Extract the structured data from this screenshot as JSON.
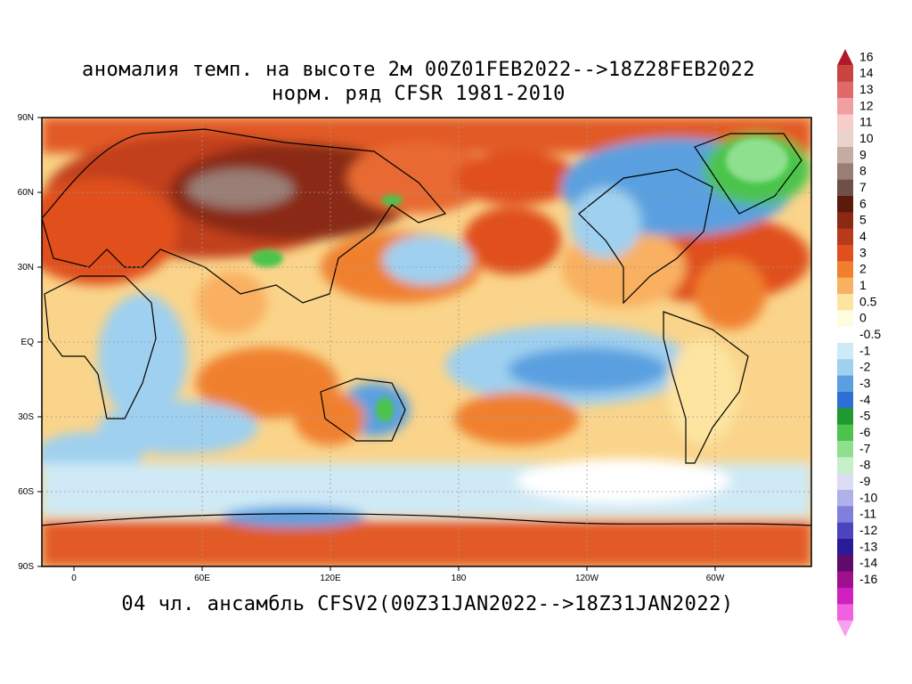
{
  "title": {
    "line1": "аномалия темп. на высоте 2м 00Z01FEB2022-->18Z28FEB2022",
    "line2": "норм. ряд CFSR 1981-2010"
  },
  "footer": "04 чл. ансамбль CFSV2(00Z31JAN2022-->18Z31JAN2022)",
  "lat_labels": [
    "90N",
    "60N",
    "30N",
    "EQ",
    "30S",
    "60S",
    "90S"
  ],
  "lon_labels": [
    "0",
    "60E",
    "120E",
    "180",
    "120W",
    "60W"
  ],
  "colorbar": {
    "labels": [
      "16",
      "14",
      "13",
      "12",
      "11",
      "10",
      "9",
      "8",
      "7",
      "6",
      "5",
      "4",
      "3",
      "2",
      "1",
      "0.5",
      "0",
      "-0.5",
      "-1",
      "-2",
      "-3",
      "-4",
      "-5",
      "-6",
      "-7",
      "-8",
      "-9",
      "-10",
      "-11",
      "-12",
      "-13",
      "-14",
      "-16"
    ],
    "colors": [
      "#b2182b",
      "#c8453f",
      "#e06a6a",
      "#f0a0a0",
      "#f7cccc",
      "#e8d4cc",
      "#c4aca2",
      "#9a7e74",
      "#6e5048",
      "#5c1a0c",
      "#8a2a12",
      "#b83a1a",
      "#e0501e",
      "#f0802e",
      "#f9b060",
      "#fde4a0",
      "#fffde0",
      "#ffffff",
      "#cfeaf6",
      "#9fd0ef",
      "#5aa0e0",
      "#2e6fd4",
      "#1e9a2e",
      "#4cc44c",
      "#8ee08e",
      "#c8f0c8",
      "#dcdcf4",
      "#b0b0ea",
      "#8080dc",
      "#4a44c0",
      "#2a1a98",
      "#600a6e",
      "#a0108e",
      "#d020c0",
      "#f060e0",
      "#f8a0f0"
    ]
  },
  "map": {
    "legend_note": "",
    "background": "#fde4a0"
  }
}
